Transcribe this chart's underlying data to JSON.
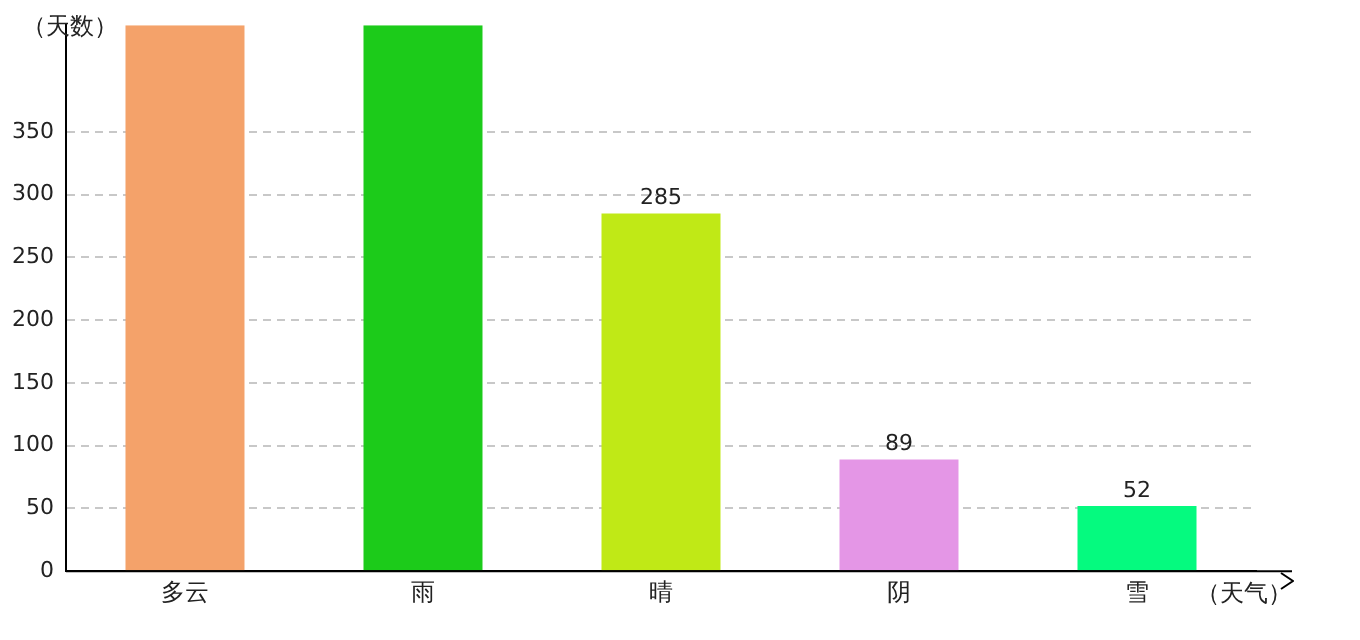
{
  "chart_data": {
    "type": "bar",
    "ylabel": "（天数）",
    "xlabel": "（天气）",
    "categories": [
      "多云",
      "雨",
      "晴",
      "阴",
      "雪"
    ],
    "values": [
      435,
      435,
      285,
      89,
      52
    ],
    "colors": [
      "#f4a26a",
      "#1ccb1a",
      "#c0e916",
      "#e496e6",
      "#05fa7f"
    ],
    "value_labels": [
      null,
      null,
      "285",
      "89",
      "52"
    ],
    "ylim": [
      0,
      435
    ],
    "yticks": [
      0,
      50,
      100,
      150,
      200,
      250,
      300,
      350
    ],
    "grid": "y",
    "legend": false
  }
}
